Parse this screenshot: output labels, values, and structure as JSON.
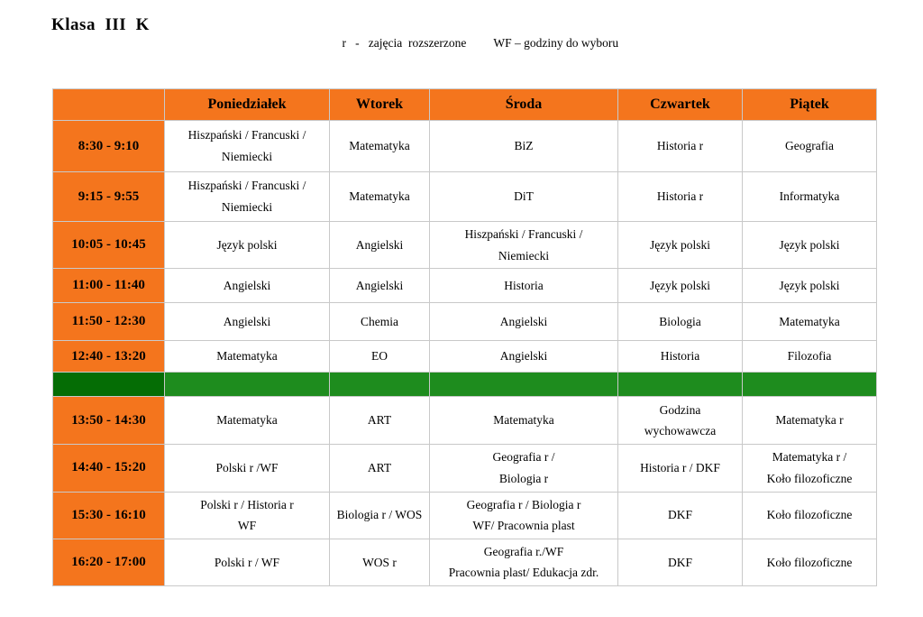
{
  "title": "Klasa  III  K",
  "legend": {
    "r_note": "r   -   zajęcia  rozszerzone",
    "wf_note": "WF – godziny do wyboru"
  },
  "colors": {
    "orange": "#F4751D",
    "separator_dark_green": "#056D05",
    "separator_light_green": "#1E8C1E",
    "grid_line": "#C9C9C9",
    "text": "#000000"
  },
  "timetable": {
    "columns": [
      "Poniedziałek",
      "Wtorek",
      "Środa",
      "Czwartek",
      "Piątek"
    ],
    "rows": [
      {
        "time": "8:30 - 9:10",
        "subjects": [
          "Hiszpański / Francuski /\nNiemiecki",
          "Matematyka",
          "BiZ",
          "Historia r",
          "Geografia"
        ]
      },
      {
        "time": "9:15 - 9:55",
        "subjects": [
          "Hiszpański / Francuski /\nNiemiecki",
          "Matematyka",
          "DiT",
          "Historia r",
          "Informatyka"
        ]
      },
      {
        "time": "10:05 - 10:45",
        "subjects": [
          "Język polski",
          "Angielski",
          "Hiszpański / Francuski /\nNiemiecki",
          "Język polski",
          "Język polski"
        ]
      },
      {
        "time": "11:00 - 11:40",
        "subjects": [
          "Angielski",
          "Angielski",
          "Historia",
          "Język polski",
          "Język polski"
        ]
      },
      {
        "time": "11:50 - 12:30",
        "subjects": [
          "Angielski",
          "Chemia",
          "Angielski",
          "Biologia",
          "Matematyka"
        ]
      },
      {
        "time": "12:40 - 13:20",
        "subjects": [
          "Matematyka",
          "EO",
          "Angielski",
          "Historia",
          "Filozofia"
        ]
      },
      {
        "separator": true
      },
      {
        "time": "13:50 - 14:30",
        "subjects": [
          "Matematyka",
          "ART",
          "Matematyka",
          "Godzina\nwychowawcza",
          "Matematyka r"
        ]
      },
      {
        "time": "14:40 - 15:20",
        "subjects": [
          "Polski r /WF",
          "ART",
          "Geografia r  /\nBiologia  r",
          "Historia r / DKF",
          "Matematyka r /\nKoło filozoficzne"
        ]
      },
      {
        "time": "15:30 - 16:10",
        "subjects": [
          "Polski r / Historia r\nWF",
          "Biologia r  / WOS",
          "Geografia r  / Biologia r\nWF/ Pracownia  plast",
          "DKF",
          "Koło filozoficzne"
        ]
      },
      {
        "time": "16:20 - 17:00",
        "subjects": [
          "Polski r / WF",
          "WOS r",
          "Geografia r./WF\nPracownia plast/ Edukacja zdr.",
          "DKF",
          "Koło filozoficzne"
        ]
      }
    ]
  }
}
